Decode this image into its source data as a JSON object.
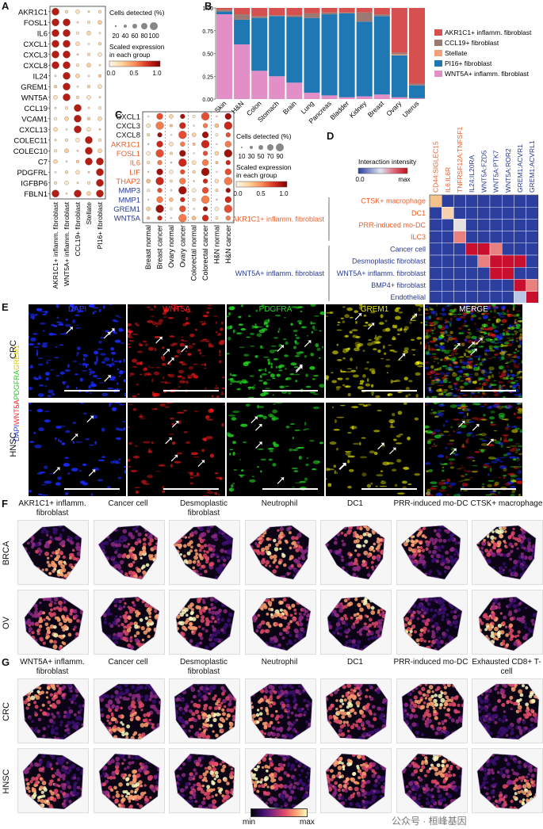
{
  "panels": {
    "A": "A",
    "B": "B",
    "C": "C",
    "D": "D",
    "E": "E",
    "F": "F",
    "G": "G"
  },
  "panelA": {
    "genes": [
      "AKR1C1",
      "FOSL1",
      "IL6",
      "CXCL1",
      "CXCL3",
      "CXCL8",
      "IL24",
      "GREM1",
      "WNT5A",
      "CCL19",
      "VCAM1",
      "CXCL13",
      "COLEC11",
      "COLEC10",
      "C7",
      "PDGFRL",
      "IGFBP6",
      "FBLN1"
    ],
    "groups": [
      "AKR1C1+ inflamm. fibroblast",
      "WNT5A+ inflamm. fibroblast",
      "CCL19+ fibroblast",
      "Stellate",
      "PI16+ fibroblast"
    ],
    "legend_size_title": "Cells detected (%)",
    "legend_size_ticks": [
      "20",
      "40",
      "60",
      "80",
      "100"
    ],
    "legend_color_title": "Scaled expression in each group",
    "legend_color_ticks": [
      "0.0",
      "0.5",
      "1.0"
    ]
  },
  "panelB": {
    "title": "",
    "yticks": [
      "0.00",
      "0.25",
      "0.50",
      "0.75",
      "1.00"
    ],
    "legend": [
      {
        "name": "AKR1C1+ inflamm. fibroblast",
        "color": "#d6504f"
      },
      {
        "name": "CCL19+ fibroblast",
        "color": "#9c7a74"
      },
      {
        "name": "Stellate",
        "color": "#f1a079"
      },
      {
        "name": "PI16+ fibroblast",
        "color": "#1f77b4"
      },
      {
        "name": "WNT5A+ inflamm. fibroblast",
        "color": "#e38fc7"
      }
    ]
  },
  "chart_data": {
    "type": "bar",
    "stacked": true,
    "categories": [
      "Skin",
      "H&N",
      "Colon",
      "Stomach",
      "Brain",
      "Lung",
      "Pancreas",
      "Bladder",
      "Kidney",
      "Breast",
      "Ovary",
      "Uterus"
    ],
    "series": [
      {
        "name": "WNT5A+ inflamm. fibroblast",
        "values": [
          0.93,
          0.6,
          0.31,
          0.25,
          0.18,
          0.07,
          0.04,
          0.02,
          0.03,
          0.05,
          0.02,
          0.01
        ]
      },
      {
        "name": "PI16+ fibroblast",
        "values": [
          0.03,
          0.27,
          0.58,
          0.66,
          0.72,
          0.82,
          0.89,
          0.92,
          0.82,
          0.86,
          0.46,
          0.14
        ]
      },
      {
        "name": "Stellate",
        "values": [
          0.0,
          0.0,
          0.0,
          0.0,
          0.0,
          0.0,
          0.0,
          0.0,
          0.0,
          0.0,
          0.01,
          0.0
        ]
      },
      {
        "name": "CCL19+ fibroblast",
        "values": [
          0.02,
          0.06,
          0.02,
          0.01,
          0.02,
          0.05,
          0.02,
          0.01,
          0.1,
          0.02,
          0.02,
          0.02
        ]
      },
      {
        "name": "AKR1C1+ inflamm. fibroblast",
        "values": [
          0.02,
          0.07,
          0.09,
          0.08,
          0.08,
          0.06,
          0.05,
          0.05,
          0.05,
          0.07,
          0.49,
          0.83
        ]
      }
    ],
    "ylim": [
      0,
      1
    ],
    "ylabel": "",
    "xlabel": ""
  },
  "panelC": {
    "genes": [
      {
        "name": "CXCL1",
        "color": "#111111"
      },
      {
        "name": "CXCL3",
        "color": "#111111"
      },
      {
        "name": "CXCL8",
        "color": "#111111"
      },
      {
        "name": "AKR1C1",
        "color": "#e8602c"
      },
      {
        "name": "FOSL1",
        "color": "#e8602c"
      },
      {
        "name": "IL6",
        "color": "#e8602c"
      },
      {
        "name": "LIF",
        "color": "#e8602c"
      },
      {
        "name": "THAP2",
        "color": "#e8602c"
      },
      {
        "name": "MMP3",
        "color": "#2b3a8f"
      },
      {
        "name": "MMP1",
        "color": "#2b3a8f"
      },
      {
        "name": "GREM1",
        "color": "#2b3a8f"
      },
      {
        "name": "WNT5A",
        "color": "#2b3a8f"
      }
    ],
    "groups": [
      "Breast normal",
      "Breast cancer",
      "Ovary normal",
      "Ovary cancer",
      "Colorectal normal",
      "Colorectal cancer",
      "H&N normal",
      "H&N cancer"
    ],
    "legend_size_title": "Cells detected (%)",
    "legend_size_ticks": [
      "10",
      "30",
      "50",
      "70",
      "90"
    ],
    "legend_color_title": "Scaled expression in each group",
    "legend_color_ticks": [
      "0.0",
      "0.5",
      "1.0"
    ]
  },
  "panelD": {
    "legend_title": "Interaction intensity",
    "legend_min": "0.0",
    "legend_max": "max",
    "pairs": [
      {
        "name": "CD44:SIGLEC15",
        "color": "#e8602c"
      },
      {
        "name": "IL6:IL6R",
        "color": "#e8602c"
      },
      {
        "name": "TNFRSF12A:TNFSF12",
        "color": "#e8602c"
      },
      {
        "name": "IL24:IL20RA",
        "color": "#2b3a8f"
      },
      {
        "name": "WNT5A:FZD5",
        "color": "#2b3a8f"
      },
      {
        "name": "WNT5A:PTK7",
        "color": "#2b3a8f"
      },
      {
        "name": "WNT5A:ROR2",
        "color": "#2b3a8f"
      },
      {
        "name": "GREM1:ACVR1",
        "color": "#2b3a8f"
      },
      {
        "name": "GREM1:ACVRL1",
        "color": "#2b3a8f"
      }
    ],
    "receivers": [
      {
        "name": "CTSK+ macrophage",
        "color": "#e8602c"
      },
      {
        "name": "DC1",
        "color": "#e8602c"
      },
      {
        "name": "PRR-induced mo-DC",
        "color": "#e8602c"
      },
      {
        "name": "ILC3",
        "color": "#e8602c"
      },
      {
        "name": "Cancer cell",
        "color": "#2b3a8f"
      },
      {
        "name": "Desmoplastic fibroblast",
        "color": "#2b3a8f"
      },
      {
        "name": "WNT5A+ inflamm. fibroblast",
        "color": "#2b3a8f"
      },
      {
        "name": "BMP4+ fibroblast",
        "color": "#2b3a8f"
      },
      {
        "name": "Endothelial",
        "color": "#2b3a8f"
      }
    ],
    "group1": "AKR1C1+ inflamm. fibroblast",
    "group2": "WNT5A+ inflamm. fibroblast"
  },
  "panelE": {
    "channels": [
      {
        "name": "DAPI",
        "color": "#2a39ff"
      },
      {
        "name": "WNT5A",
        "color": "#ff2222"
      },
      {
        "name": "PDGFRA",
        "color": "#22dd22"
      },
      {
        "name": "GREM1",
        "color": "#e8e800"
      },
      {
        "name": "MERGE",
        "color": "#ffffff"
      }
    ],
    "rows": [
      "CRC",
      "HNSC"
    ],
    "ylabel_parts": [
      {
        "t": "DAPI",
        "c": "#2a39ff"
      },
      {
        "t": "WNT5A",
        "c": "#ff2222"
      },
      {
        "t": "PDGFRA",
        "c": "#22cc22"
      },
      {
        "t": "GREM1",
        "c": "#d8c800"
      }
    ]
  },
  "panelF": {
    "titles": [
      "AKR1C1+ inflamm. fibroblast",
      "Cancer cell",
      "Desmoplastic fibroblast",
      "Neutrophil",
      "DC1",
      "PRR-induced mo-DC",
      "CTSK+ macrophage"
    ],
    "rows": [
      "BRCA",
      "OV"
    ]
  },
  "panelG": {
    "titles": [
      "WNT5A+ inflamm. fibroblast",
      "Cancer cell",
      "Desmoplastic fibroblast",
      "Neutrophil",
      "DC1",
      "PRR-induced mo-DC",
      "Exhausted CD8+ T-cell"
    ],
    "rows": [
      "CRC",
      "HNSC"
    ]
  },
  "colorbar": {
    "min": "min",
    "max": "max"
  },
  "watermark": "公众号 · 桓峰基因"
}
